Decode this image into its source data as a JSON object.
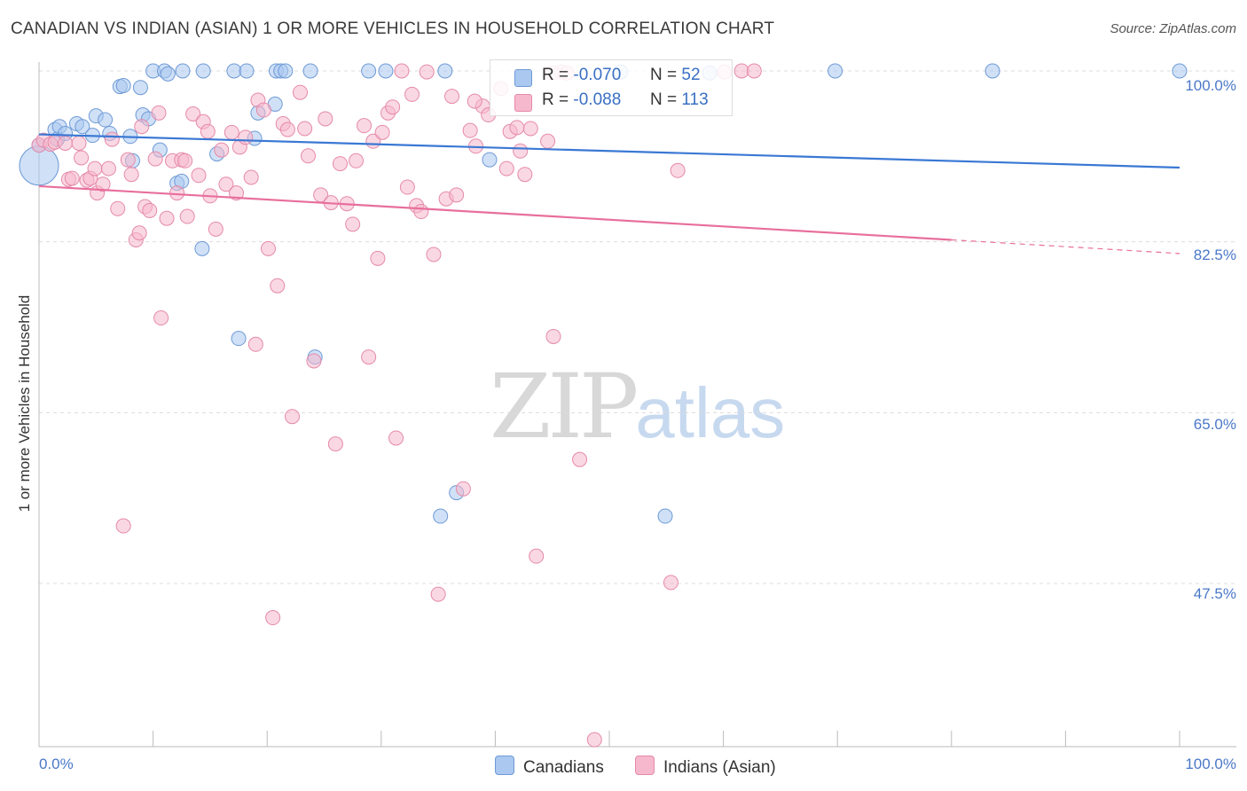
{
  "header": {
    "title": "CANADIAN VS INDIAN (ASIAN) 1 OR MORE VEHICLES IN HOUSEHOLD CORRELATION CHART",
    "source": "Source: ZipAtlas.com"
  },
  "watermark": {
    "zip": "ZIP",
    "atlas": "atlas"
  },
  "colors": {
    "canadians": "#3a78d4",
    "indians": "#e86f9c",
    "canadians_fill": "#aac8f0",
    "indians_fill": "#f6b8cc"
  },
  "legend": {
    "rows": [
      {
        "r_label": "R =",
        "r_value": "-0.070",
        "n_label": "N =",
        "n_value": "52"
      },
      {
        "r_label": "R =",
        "r_value": "-0.088",
        "n_label": "N =",
        "n_value": "113"
      }
    ]
  },
  "bottom_legend": {
    "canadians": "Canadians",
    "indians": "Indians (Asian)"
  },
  "chart_data": {
    "type": "scatter",
    "title": "CANADIAN VS INDIAN (ASIAN) 1 OR MORE VEHICLES IN HOUSEHOLD CORRELATION CHART",
    "ylabel": "1 or more Vehicles in Household",
    "xlabel": "",
    "xlim": [
      0,
      100
    ],
    "ylim": [
      30.0,
      101.5
    ],
    "x_tick_labels": [
      "0.0%",
      "100.0%"
    ],
    "y_tick_labels": [
      "100.0%",
      "82.5%",
      "65.0%",
      "47.5%"
    ],
    "y_ticks": [
      100.0,
      82.5,
      65.0,
      47.5
    ],
    "grid": true,
    "legend_position": "top-center",
    "series": [
      {
        "name": "Canadians",
        "r": -0.07,
        "n": 52,
        "trend": {
          "x": [
            0,
            100
          ],
          "y": [
            93.5,
            90.1
          ]
        },
        "points": [
          [
            0,
            90.3
          ],
          [
            0,
            92.4
          ],
          [
            1.4,
            94.0
          ],
          [
            1.6,
            93.0
          ],
          [
            1.8,
            94.3
          ],
          [
            2.3,
            93.6
          ],
          [
            3.3,
            94.6
          ],
          [
            3.8,
            94.3
          ],
          [
            5.0,
            95.4
          ],
          [
            4.7,
            93.4
          ],
          [
            5.8,
            95.0
          ],
          [
            6.2,
            93.6
          ],
          [
            7.1,
            98.4
          ],
          [
            7.4,
            98.5
          ],
          [
            8.0,
            93.3
          ],
          [
            8.2,
            90.8
          ],
          [
            8.9,
            98.3
          ],
          [
            9.1,
            95.5
          ],
          [
            9.6,
            95.1
          ],
          [
            10.0,
            100
          ],
          [
            10.6,
            91.9
          ],
          [
            11.0,
            100
          ],
          [
            11.3,
            99.7
          ],
          [
            12.1,
            88.5
          ],
          [
            12.6,
            100
          ],
          [
            14.4,
            100
          ],
          [
            15.6,
            91.5
          ],
          [
            17.1,
            100
          ],
          [
            18.2,
            100
          ],
          [
            18.9,
            93.1
          ],
          [
            19.2,
            95.7
          ],
          [
            20.8,
            100
          ],
          [
            21.2,
            100
          ],
          [
            21.6,
            100
          ],
          [
            20.7,
            96.6
          ],
          [
            23.8,
            100
          ],
          [
            28.9,
            100
          ],
          [
            30.4,
            100
          ],
          [
            35.6,
            100
          ],
          [
            14.3,
            81.8
          ],
          [
            17.5,
            72.6
          ],
          [
            24.2,
            70.7
          ],
          [
            39.5,
            90.9
          ],
          [
            35.2,
            54.4
          ],
          [
            36.6,
            56.8
          ],
          [
            51.0,
            99.9
          ],
          [
            54.9,
            54.4
          ],
          [
            58.8,
            99.8
          ],
          [
            69.8,
            100
          ],
          [
            83.6,
            100
          ],
          [
            100,
            100
          ],
          [
            12.5,
            88.7
          ]
        ]
      },
      {
        "name": "Indians (Asian)",
        "r": -0.088,
        "n": 113,
        "trend": {
          "x": [
            0,
            80
          ],
          "y": [
            88.2,
            82.7
          ]
        },
        "trend_dashed": {
          "x": [
            80,
            100
          ],
          "y": [
            82.7,
            81.3
          ]
        },
        "points": [
          [
            0,
            92.4
          ],
          [
            0.4,
            92.9
          ],
          [
            1.0,
            92.5
          ],
          [
            1.4,
            92.7
          ],
          [
            2.3,
            92.6
          ],
          [
            2.6,
            88.9
          ],
          [
            2.9,
            89.0
          ],
          [
            3.5,
            92.6
          ],
          [
            3.7,
            91.1
          ],
          [
            4.2,
            88.8
          ],
          [
            4.5,
            89.0
          ],
          [
            4.9,
            90.0
          ],
          [
            5.1,
            87.5
          ],
          [
            5.6,
            88.4
          ],
          [
            6.1,
            90.0
          ],
          [
            6.4,
            93.0
          ],
          [
            6.9,
            85.9
          ],
          [
            7.4,
            53.4
          ],
          [
            7.8,
            90.9
          ],
          [
            8.1,
            89.4
          ],
          [
            8.5,
            82.7
          ],
          [
            8.8,
            83.4
          ],
          [
            9.3,
            86.1
          ],
          [
            9.7,
            85.7
          ],
          [
            10.2,
            91.0
          ],
          [
            10.5,
            95.7
          ],
          [
            10.7,
            74.7
          ],
          [
            11.2,
            84.9
          ],
          [
            11.7,
            90.8
          ],
          [
            12.1,
            87.5
          ],
          [
            12.5,
            90.9
          ],
          [
            12.8,
            90.8
          ],
          [
            13.0,
            85.1
          ],
          [
            13.5,
            95.6
          ],
          [
            14.4,
            94.8
          ],
          [
            14.8,
            93.8
          ],
          [
            14.0,
            89.3
          ],
          [
            15.0,
            87.2
          ],
          [
            15.5,
            83.8
          ],
          [
            16.0,
            91.9
          ],
          [
            16.4,
            88.4
          ],
          [
            16.9,
            93.7
          ],
          [
            17.3,
            87.5
          ],
          [
            17.6,
            92.2
          ],
          [
            18.1,
            93.2
          ],
          [
            18.6,
            89.1
          ],
          [
            19.0,
            72.0
          ],
          [
            19.2,
            97.0
          ],
          [
            19.7,
            96.0
          ],
          [
            20.1,
            81.8
          ],
          [
            20.5,
            44.0
          ],
          [
            20.9,
            78.0
          ],
          [
            21.4,
            94.6
          ],
          [
            21.8,
            94.0
          ],
          [
            22.2,
            64.6
          ],
          [
            22.9,
            97.8
          ],
          [
            23.3,
            94.1
          ],
          [
            23.6,
            91.3
          ],
          [
            24.1,
            70.3
          ],
          [
            24.7,
            87.3
          ],
          [
            25.1,
            95.1
          ],
          [
            25.6,
            86.5
          ],
          [
            26.0,
            61.8
          ],
          [
            26.4,
            90.5
          ],
          [
            27.0,
            86.4
          ],
          [
            27.5,
            84.3
          ],
          [
            27.8,
            90.8
          ],
          [
            28.5,
            94.4
          ],
          [
            28.9,
            70.7
          ],
          [
            29.3,
            92.8
          ],
          [
            29.7,
            80.8
          ],
          [
            30.1,
            93.7
          ],
          [
            30.6,
            95.7
          ],
          [
            31.0,
            96.3
          ],
          [
            31.3,
            62.4
          ],
          [
            31.8,
            100
          ],
          [
            32.3,
            88.1
          ],
          [
            32.7,
            97.6
          ],
          [
            33.1,
            86.2
          ],
          [
            33.5,
            85.6
          ],
          [
            34.0,
            99.9
          ],
          [
            34.6,
            81.2
          ],
          [
            35.0,
            46.4
          ],
          [
            35.7,
            86.9
          ],
          [
            36.2,
            97.4
          ],
          [
            36.6,
            87.3
          ],
          [
            37.2,
            57.2
          ],
          [
            37.8,
            93.9
          ],
          [
            38.3,
            92.3
          ],
          [
            38.9,
            96.4
          ],
          [
            39.4,
            95.5
          ],
          [
            40.5,
            98.2
          ],
          [
            41.0,
            90.0
          ],
          [
            41.3,
            93.8
          ],
          [
            42.2,
            91.8
          ],
          [
            42.6,
            89.4
          ],
          [
            43.1,
            94.1
          ],
          [
            43.6,
            50.3
          ],
          [
            44.6,
            92.8
          ],
          [
            45.1,
            72.8
          ],
          [
            45.8,
            99.9
          ],
          [
            46.3,
            99.8
          ],
          [
            47.4,
            60.2
          ],
          [
            48.7,
            31.5
          ],
          [
            55.4,
            47.6
          ],
          [
            56.0,
            89.8
          ],
          [
            61.6,
            100
          ],
          [
            62.7,
            100
          ],
          [
            60.1,
            99.9
          ],
          [
            45.0,
            99.8
          ],
          [
            38.2,
            96.9
          ],
          [
            41.9,
            94.2
          ],
          [
            9.0,
            94.3
          ]
        ]
      }
    ]
  }
}
